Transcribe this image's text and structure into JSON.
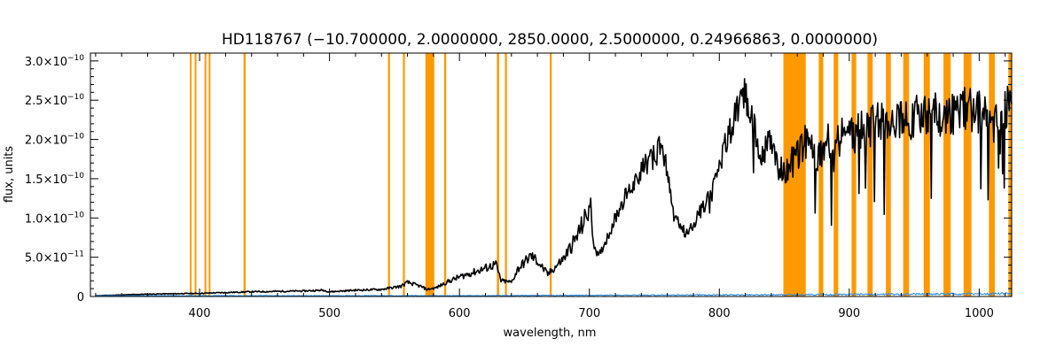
{
  "chart_data": {
    "type": "line",
    "title": "HD118767   (−10.700000, 2.0000000, 2850.0000, 2.5000000, 0.24966863, 0.0000000)",
    "xlabel": "wavelength, nm",
    "ylabel": "flux, units",
    "xlim": [
      316,
      1025
    ],
    "ylim": [
      0,
      3.1e-10
    ],
    "x_ticks": [
      {
        "value": 400,
        "label": "400"
      },
      {
        "value": 500,
        "label": "500"
      },
      {
        "value": 600,
        "label": "600"
      },
      {
        "value": 700,
        "label": "700"
      },
      {
        "value": 800,
        "label": "800"
      },
      {
        "value": 900,
        "label": "900"
      },
      {
        "value": 1000,
        "label": "1000"
      }
    ],
    "y_ticks": [
      {
        "value": 0,
        "mant": "0",
        "exp": ""
      },
      {
        "value": 5e-11,
        "mant": "5.0×10",
        "exp": "−11"
      },
      {
        "value": 1e-10,
        "mant": "1.0×10",
        "exp": "−10"
      },
      {
        "value": 1.5e-10,
        "mant": "1.5×10",
        "exp": "−10"
      },
      {
        "value": 2e-10,
        "mant": "2.0×10",
        "exp": "−10"
      },
      {
        "value": 2.5e-10,
        "mant": "2.5×10",
        "exp": "−10"
      },
      {
        "value": 3e-10,
        "mant": "3.0×10",
        "exp": "−10"
      }
    ],
    "masked_regions_nm": [
      [
        392.5,
        393.8
      ],
      [
        396.2,
        397.5
      ],
      [
        403.8,
        405.0
      ],
      [
        407.0,
        408.3
      ],
      [
        433.8,
        435.5
      ],
      [
        545.0,
        546.5
      ],
      [
        556.5,
        558.0
      ],
      [
        573.8,
        580.6
      ],
      [
        588.2,
        589.8
      ],
      [
        628.8,
        630.5
      ],
      [
        635.0,
        636.5
      ],
      [
        669.5,
        671.0
      ],
      [
        849.3,
        866.5
      ],
      [
        876.5,
        880.0
      ],
      [
        888.0,
        891.5
      ],
      [
        901.8,
        905.3
      ],
      [
        914.0,
        918.0
      ],
      [
        928.2,
        932.0
      ],
      [
        941.5,
        946.0
      ],
      [
        957.3,
        962.0
      ],
      [
        972.5,
        978.0
      ],
      [
        988.0,
        994.0
      ],
      [
        1007.5,
        1012.0
      ],
      [
        1022.5,
        1025.0
      ]
    ],
    "series": [
      {
        "color": "#000000",
        "points": [
          [
            320,
            1e-12
          ],
          [
            340,
            2e-12
          ],
          [
            360,
            3e-12
          ],
          [
            380,
            3.5e-12
          ],
          [
            400,
            4e-12
          ],
          [
            420,
            5e-12
          ],
          [
            440,
            6e-12
          ],
          [
            460,
            6.5e-12
          ],
          [
            480,
            7e-12
          ],
          [
            495,
            8e-12
          ],
          [
            500,
            6e-12
          ],
          [
            520,
            8e-12
          ],
          [
            540,
            9e-12
          ],
          [
            555,
            1.3e-11
          ],
          [
            560,
            1.8e-11
          ],
          [
            570,
            1.3e-11
          ],
          [
            575,
            9e-12
          ],
          [
            582,
            1.1e-11
          ],
          [
            590,
            1.8e-11
          ],
          [
            600,
            2.5e-11
          ],
          [
            615,
            3.3e-11
          ],
          [
            628,
            4.1e-11
          ],
          [
            632,
            2e-11
          ],
          [
            640,
            1.8e-11
          ],
          [
            645,
            3.5e-11
          ],
          [
            655,
            5.2e-11
          ],
          [
            660,
            4.5e-11
          ],
          [
            668,
            2.8e-11
          ],
          [
            680,
            4.8e-11
          ],
          [
            690,
            7.5e-11
          ],
          [
            697,
            1e-10
          ],
          [
            701,
            1.16e-10
          ],
          [
            703,
            7e-11
          ],
          [
            707,
            5e-11
          ],
          [
            715,
            8e-11
          ],
          [
            725,
            1.2e-10
          ],
          [
            740,
            1.6e-10
          ],
          [
            755,
            1.9e-10
          ],
          [
            760,
            1.6e-10
          ],
          [
            765,
            1e-10
          ],
          [
            775,
            8e-11
          ],
          [
            790,
            1.2e-10
          ],
          [
            800,
            1.7e-10
          ],
          [
            810,
            2.2e-10
          ],
          [
            820,
            2.6e-10
          ],
          [
            825,
            2.3e-10
          ],
          [
            832,
            1.7e-10
          ],
          [
            838,
            2e-10
          ],
          [
            845,
            1.7e-10
          ],
          [
            849,
            1.55e-10
          ],
          [
            866,
            1.95e-10
          ],
          [
            875,
            1.75e-10
          ],
          [
            885,
            2e-10
          ],
          [
            900,
            2.05e-10
          ],
          [
            915,
            2.15e-10
          ],
          [
            930,
            2.3e-10
          ],
          [
            945,
            2.25e-10
          ],
          [
            960,
            2.35e-10
          ],
          [
            975,
            2.3e-10
          ],
          [
            990,
            2.4e-10
          ],
          [
            1000,
            2.35e-10
          ],
          [
            1010,
            2.2e-10
          ],
          [
            1018,
            2.4e-10
          ],
          [
            1025,
            2.45e-10
          ]
        ]
      },
      {
        "color": "#1e88e5",
        "points": [
          [
            320,
            1e-12
          ],
          [
            400,
            1e-12
          ],
          [
            500,
            1e-12
          ],
          [
            600,
            1e-12
          ],
          [
            700,
            1.5e-12
          ],
          [
            800,
            2e-12
          ],
          [
            900,
            2.5e-12
          ],
          [
            1000,
            3.5e-12
          ],
          [
            1025,
            3.8e-12
          ]
        ]
      }
    ],
    "colors": {
      "axis": "#000000",
      "mask": "#ff9900",
      "spectrum": "#000000",
      "model": "#1e88e5"
    }
  }
}
